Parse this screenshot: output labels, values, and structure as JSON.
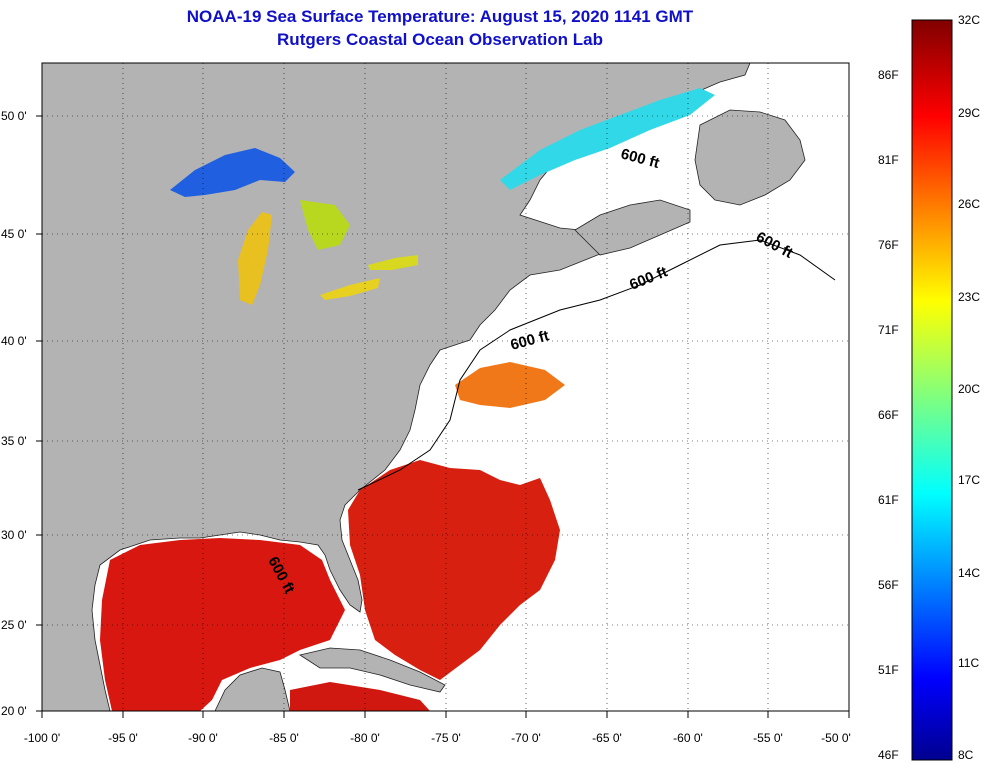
{
  "title": {
    "line1": "NOAA-19 Sea Surface Temperature:  August 15, 2020 1141 GMT",
    "line2": "Rutgers Coastal Ocean Observation Lab"
  },
  "map": {
    "lat_labels": [
      "50 0'",
      "45 0'",
      "40 0'",
      "35 0'",
      "30 0'",
      "25 0'",
      "20 0'"
    ],
    "lon_labels": [
      "-100 0'",
      "-95 0'",
      "-90 0'",
      "-85 0'",
      "-80 0'",
      "-75 0'",
      "-70 0'",
      "-65 0'",
      "-60 0'",
      "-55 0'",
      "-50 0'"
    ],
    "isobath_label": "600 ft",
    "colors": {
      "land": "#b3b3b3",
      "ocean_nodata": "#ffffff",
      "warm": "#e02010",
      "hot": "#c00000"
    }
  },
  "colorbar": {
    "celsius_labels": [
      "32C",
      "29C",
      "26C",
      "23C",
      "20C",
      "17C",
      "14C",
      "11C",
      "8C"
    ],
    "fahrenheit_labels": [
      "86F",
      "81F",
      "76F",
      "71F",
      "66F",
      "61F",
      "56F",
      "51F",
      "46F"
    ],
    "min_c": 8,
    "max_c": 32
  }
}
